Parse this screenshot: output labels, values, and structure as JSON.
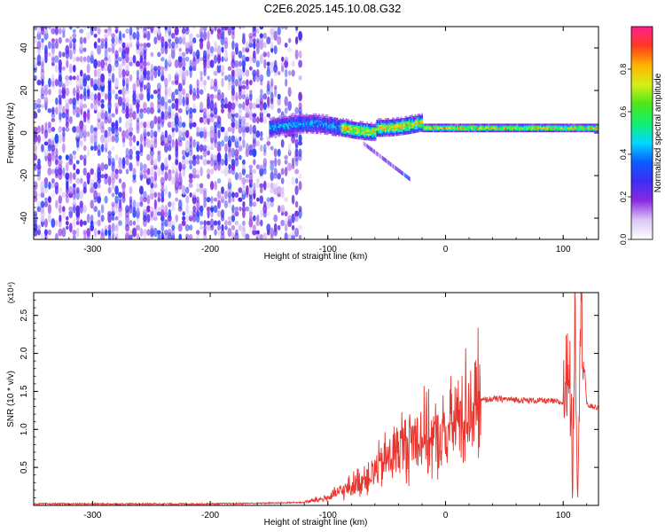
{
  "figure_title": "C2E6.2025.145.10.08.G32",
  "colorbar": {
    "label": "Normalized spectral amplitude",
    "ticks": [
      "0.0",
      "0.2",
      "0.4",
      "0.6",
      "0.8"
    ],
    "tick_values": [
      0,
      0.2,
      0.4,
      0.6,
      0.8
    ],
    "range": [
      0,
      1
    ],
    "colormap": [
      "#ffffff",
      "#d9c8f5",
      "#8a2be2",
      "#3c2cf5",
      "#0b5cff",
      "#00d8ff",
      "#12f070",
      "#4be61b",
      "#d6ef15",
      "#ffb300",
      "#ff3b1f",
      "#ff1d8e"
    ]
  },
  "chart_data": [
    {
      "type": "heatmap",
      "xlabel": "Height of straight line (km)",
      "ylabel": "Frequency (Hz)",
      "xlim": [
        -350,
        130
      ],
      "ylim": [
        -50,
        50
      ],
      "x_ticks": [
        -300,
        -200,
        -100,
        0,
        100
      ],
      "x_tick_labels": [
        "-300",
        "-200",
        "-100",
        "0",
        "100"
      ],
      "y_ticks": [
        -40,
        -20,
        0,
        20,
        40
      ],
      "y_tick_labels": [
        "-40",
        "-20",
        "0",
        "20",
        "40"
      ],
      "features": [
        {
          "region": "noise",
          "x_range": [
            -350,
            -130
          ],
          "y_range": [
            -50,
            50
          ],
          "amplitude": 0.15
        },
        {
          "region": "signal band",
          "x_range": [
            -150,
            130
          ],
          "center_freq": 2,
          "amplitude": 0.9
        },
        {
          "region": "weak trace",
          "x_range": [
            -70,
            -30
          ],
          "freq_range": [
            -5,
            -22
          ],
          "amplitude": 0.2
        }
      ]
    },
    {
      "type": "line",
      "xlabel": "Height of straight line (km)",
      "ylabel": "SNR (10 * v/v)",
      "y_multiplier": "(x10⁴)",
      "color": "#e8352e",
      "xlim": [
        -350,
        130
      ],
      "ylim": [
        0,
        2.8
      ],
      "x_ticks": [
        -300,
        -200,
        -100,
        0,
        100
      ],
      "x_tick_labels": [
        "-300",
        "-200",
        "-100",
        "0",
        "100"
      ],
      "y_ticks": [
        0.5,
        1.0,
        1.5,
        2.0,
        2.5
      ],
      "y_tick_labels": [
        "0.5",
        "1.0",
        "1.5",
        "2.0",
        "2.5"
      ],
      "x": [
        -350,
        -300,
        -250,
        -200,
        -150,
        -120,
        -100,
        -80,
        -60,
        -50,
        -40,
        -30,
        -20,
        -10,
        0,
        10,
        20,
        30,
        40,
        50,
        60,
        70,
        80,
        90,
        100,
        105,
        108,
        110,
        112,
        115,
        120,
        130
      ],
      "values": [
        0.02,
        0.02,
        0.02,
        0.02,
        0.03,
        0.04,
        0.1,
        0.25,
        0.45,
        0.6,
        0.75,
        0.85,
        0.95,
        0.85,
        0.9,
        1.15,
        1.3,
        1.38,
        1.4,
        1.4,
        1.39,
        1.38,
        1.38,
        1.37,
        1.35,
        2.0,
        0.4,
        2.8,
        0.3,
        2.7,
        1.32,
        1.28
      ]
    }
  ]
}
